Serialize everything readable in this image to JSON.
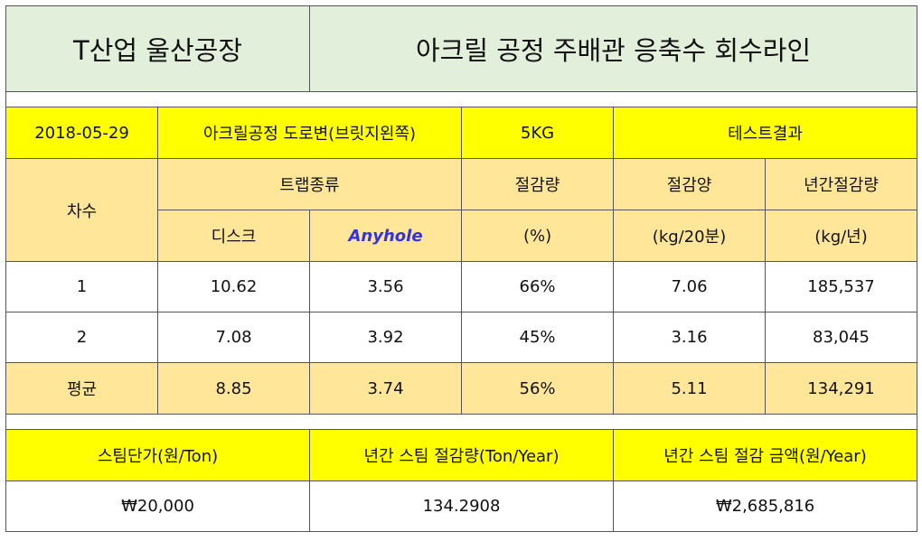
{
  "title": {
    "company": "T산업 울산공장",
    "line": "아크릴 공정 주배관 응축수 회수라인"
  },
  "info": {
    "date": "2018-05-29",
    "location": "아크릴공정 도로변(브릿지왼쪽)",
    "pressure": "5KG",
    "result": "테스트결과"
  },
  "headers": {
    "round": "차수",
    "trap_type": "트랩종류",
    "disc": "디스크",
    "anyhole": "Anyhole",
    "saving_rate": "절감량",
    "saving_rate_unit": "(%)",
    "saving_amount": "절감양",
    "saving_amount_unit": "(kg/20분)",
    "annual_saving": "년간절감량",
    "annual_saving_unit": "(kg/년)"
  },
  "rows": [
    {
      "round": "1",
      "disc": "10.62",
      "anyhole": "3.56",
      "rate": "66%",
      "amount": "7.06",
      "annual": "185,537"
    },
    {
      "round": "2",
      "disc": "7.08",
      "anyhole": "3.92",
      "rate": "45%",
      "amount": "3.16",
      "annual": "83,045"
    }
  ],
  "average": {
    "label": "평균",
    "disc": "8.85",
    "anyhole": "3.74",
    "rate": "56%",
    "amount": "5.11",
    "annual": "134,291"
  },
  "summary": {
    "headers": [
      "스팀단가(원/Ton)",
      "년간 스팀 절감량(Ton/Year)",
      "년간 스팀 절감 금액(원/Year)"
    ],
    "values": [
      "₩20,000",
      "134.2908",
      "₩2,685,816"
    ]
  },
  "colors": {
    "title_bg": "#e2efda",
    "yellow": "#ffff00",
    "peach": "#ffe699",
    "anyhole_text": "#3333dd"
  }
}
